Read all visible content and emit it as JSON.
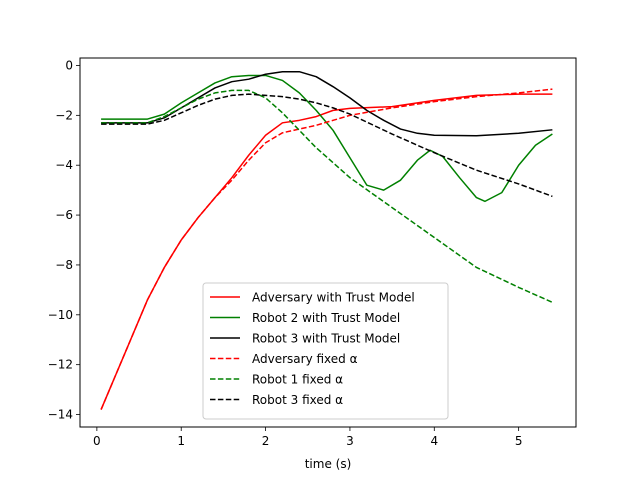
{
  "chart_data": {
    "type": "line",
    "title": "",
    "xlabel": "time (s)",
    "ylabel": "",
    "xlim": [
      -0.2,
      5.68
    ],
    "ylim": [
      -14.5,
      0.3
    ],
    "xticks": [
      0,
      1,
      2,
      3,
      4,
      5
    ],
    "yticks": [
      0,
      -2,
      -4,
      -6,
      -8,
      -10,
      -12,
      -14
    ],
    "ytick_labels": [
      "0",
      "−2",
      "−4",
      "−6",
      "−8",
      "−10",
      "−12",
      "−14"
    ],
    "grid": false,
    "legend_position": "lower center",
    "series": [
      {
        "name": "Adversary with Trust Model",
        "color": "#ff0000",
        "style": "solid",
        "points": [
          [
            0.05,
            -13.8
          ],
          [
            0.2,
            -12.6
          ],
          [
            0.4,
            -11.0
          ],
          [
            0.6,
            -9.4
          ],
          [
            0.8,
            -8.1
          ],
          [
            1.0,
            -7.0
          ],
          [
            1.2,
            -6.1
          ],
          [
            1.4,
            -5.3
          ],
          [
            1.6,
            -4.5
          ],
          [
            1.8,
            -3.6
          ],
          [
            2.0,
            -2.8
          ],
          [
            2.2,
            -2.3
          ],
          [
            2.4,
            -2.2
          ],
          [
            2.6,
            -2.05
          ],
          [
            2.8,
            -1.8
          ],
          [
            3.0,
            -1.72
          ],
          [
            3.5,
            -1.65
          ],
          [
            4.0,
            -1.4
          ],
          [
            4.5,
            -1.2
          ],
          [
            5.0,
            -1.15
          ],
          [
            5.4,
            -1.15
          ]
        ]
      },
      {
        "name": "Robot 2  with Trust Model",
        "color": "#008000",
        "style": "solid",
        "points": [
          [
            0.05,
            -2.15
          ],
          [
            0.6,
            -2.15
          ],
          [
            0.8,
            -1.95
          ],
          [
            1.0,
            -1.5
          ],
          [
            1.2,
            -1.1
          ],
          [
            1.4,
            -0.7
          ],
          [
            1.6,
            -0.45
          ],
          [
            1.8,
            -0.4
          ],
          [
            2.0,
            -0.4
          ],
          [
            2.2,
            -0.6
          ],
          [
            2.4,
            -1.1
          ],
          [
            2.6,
            -1.8
          ],
          [
            2.8,
            -2.6
          ],
          [
            3.0,
            -3.7
          ],
          [
            3.2,
            -4.8
          ],
          [
            3.4,
            -5.0
          ],
          [
            3.6,
            -4.6
          ],
          [
            3.8,
            -3.8
          ],
          [
            3.95,
            -3.4
          ],
          [
            4.1,
            -3.65
          ],
          [
            4.3,
            -4.5
          ],
          [
            4.5,
            -5.3
          ],
          [
            4.6,
            -5.45
          ],
          [
            4.8,
            -5.1
          ],
          [
            5.0,
            -4.0
          ],
          [
            5.2,
            -3.2
          ],
          [
            5.4,
            -2.75
          ]
        ]
      },
      {
        "name": "Robot 3  with Trust Model",
        "color": "#000000",
        "style": "solid",
        "points": [
          [
            0.05,
            -2.3
          ],
          [
            0.6,
            -2.3
          ],
          [
            0.8,
            -2.1
          ],
          [
            1.0,
            -1.7
          ],
          [
            1.2,
            -1.3
          ],
          [
            1.4,
            -0.9
          ],
          [
            1.6,
            -0.65
          ],
          [
            1.8,
            -0.55
          ],
          [
            2.0,
            -0.35
          ],
          [
            2.2,
            -0.25
          ],
          [
            2.4,
            -0.25
          ],
          [
            2.6,
            -0.45
          ],
          [
            2.8,
            -0.85
          ],
          [
            3.0,
            -1.3
          ],
          [
            3.2,
            -1.8
          ],
          [
            3.4,
            -2.2
          ],
          [
            3.6,
            -2.55
          ],
          [
            3.8,
            -2.72
          ],
          [
            4.0,
            -2.8
          ],
          [
            4.5,
            -2.82
          ],
          [
            5.0,
            -2.72
          ],
          [
            5.4,
            -2.58
          ]
        ]
      },
      {
        "name": "Adversary fixed α",
        "color": "#ff0000",
        "style": "dashed",
        "points": [
          [
            0.05,
            -13.8
          ],
          [
            0.2,
            -12.6
          ],
          [
            0.4,
            -11.0
          ],
          [
            0.6,
            -9.4
          ],
          [
            0.8,
            -8.1
          ],
          [
            1.0,
            -7.0
          ],
          [
            1.2,
            -6.1
          ],
          [
            1.4,
            -5.3
          ],
          [
            1.6,
            -4.6
          ],
          [
            1.8,
            -3.8
          ],
          [
            2.0,
            -3.1
          ],
          [
            2.2,
            -2.7
          ],
          [
            2.4,
            -2.55
          ],
          [
            2.6,
            -2.4
          ],
          [
            2.8,
            -2.2
          ],
          [
            3.0,
            -2.0
          ],
          [
            3.5,
            -1.7
          ],
          [
            4.0,
            -1.45
          ],
          [
            4.5,
            -1.25
          ],
          [
            5.0,
            -1.1
          ],
          [
            5.4,
            -0.95
          ]
        ]
      },
      {
        "name": "Robot 1 fixed α",
        "color": "#008000",
        "style": "dashed",
        "points": [
          [
            0.05,
            -2.3
          ],
          [
            0.6,
            -2.3
          ],
          [
            0.8,
            -2.05
          ],
          [
            1.0,
            -1.7
          ],
          [
            1.2,
            -1.35
          ],
          [
            1.4,
            -1.1
          ],
          [
            1.6,
            -1.0
          ],
          [
            1.8,
            -1.0
          ],
          [
            2.0,
            -1.3
          ],
          [
            2.2,
            -1.9
          ],
          [
            2.4,
            -2.6
          ],
          [
            2.6,
            -3.3
          ],
          [
            2.8,
            -3.9
          ],
          [
            3.0,
            -4.5
          ],
          [
            3.5,
            -5.7
          ],
          [
            4.0,
            -6.9
          ],
          [
            4.5,
            -8.1
          ],
          [
            5.0,
            -8.9
          ],
          [
            5.4,
            -9.5
          ]
        ]
      },
      {
        "name": "Robot 3 fixed α",
        "color": "#000000",
        "style": "dashed",
        "points": [
          [
            0.05,
            -2.35
          ],
          [
            0.6,
            -2.35
          ],
          [
            0.8,
            -2.2
          ],
          [
            1.0,
            -1.9
          ],
          [
            1.2,
            -1.6
          ],
          [
            1.4,
            -1.35
          ],
          [
            1.6,
            -1.2
          ],
          [
            1.8,
            -1.15
          ],
          [
            2.0,
            -1.2
          ],
          [
            2.2,
            -1.25
          ],
          [
            2.4,
            -1.35
          ],
          [
            2.6,
            -1.5
          ],
          [
            2.8,
            -1.7
          ],
          [
            3.0,
            -1.95
          ],
          [
            3.5,
            -2.75
          ],
          [
            4.0,
            -3.5
          ],
          [
            4.5,
            -4.2
          ],
          [
            5.0,
            -4.75
          ],
          [
            5.4,
            -5.25
          ]
        ]
      }
    ]
  }
}
